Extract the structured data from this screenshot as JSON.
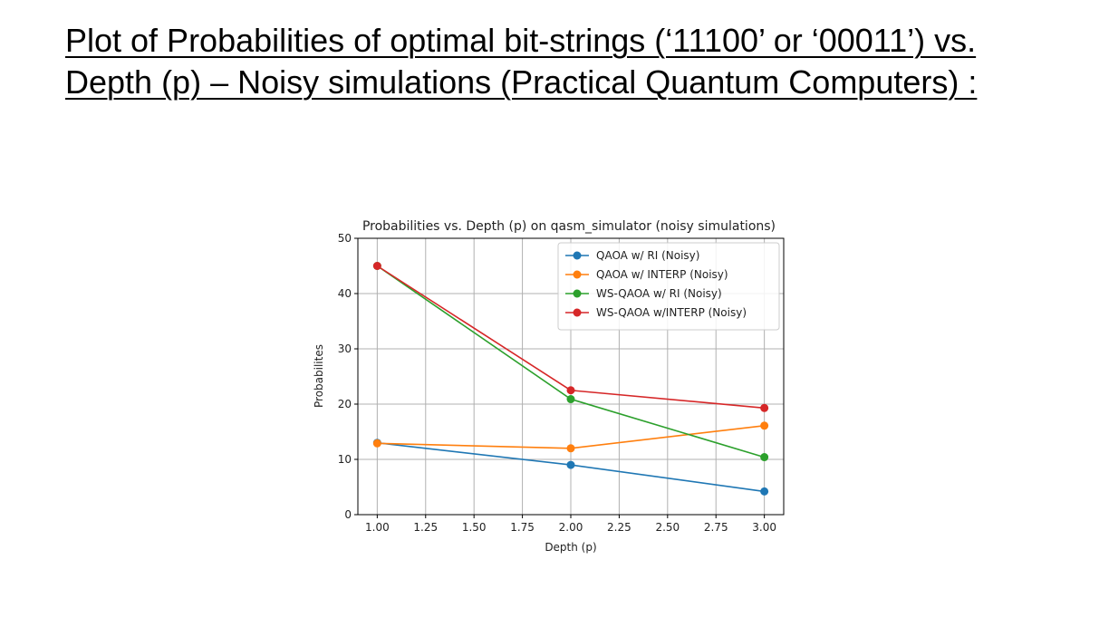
{
  "slide": {
    "title": "Plot of Probabilities of optimal bit-strings (‘11100’ or ‘00011’) vs. Depth (p) – Noisy simulations (Practical Quantum Computers) :"
  },
  "chart_data": {
    "type": "line",
    "title": "Probabilities vs. Depth (p) on qasm_simulator (noisy simulations)",
    "xlabel": "Depth (p)",
    "ylabel": "Probabilites",
    "xlim": [
      0.9,
      3.1
    ],
    "ylim": [
      0,
      50
    ],
    "xticks": [
      "1.00",
      "1.25",
      "1.50",
      "1.75",
      "2.00",
      "2.25",
      "2.50",
      "2.75",
      "3.00"
    ],
    "yticks": [
      "0",
      "10",
      "20",
      "30",
      "40",
      "50"
    ],
    "grid": true,
    "legend_position": "top-right",
    "x": [
      1,
      2,
      3
    ],
    "series": [
      {
        "name": "QAOA w/ RI (Noisy)",
        "color": "#1f77b4",
        "values": [
          13.0,
          9.0,
          4.2
        ]
      },
      {
        "name": "QAOA w/ INTERP (Noisy)",
        "color": "#ff7f0e",
        "values": [
          12.9,
          12.0,
          16.1
        ]
      },
      {
        "name": "WS-QAOA w/ RI (Noisy)",
        "color": "#2ca02c",
        "values": [
          45.0,
          20.9,
          10.4
        ]
      },
      {
        "name": "WS-QAOA w/INTERP (Noisy)",
        "color": "#d62728",
        "values": [
          45.0,
          22.5,
          19.3
        ]
      }
    ]
  }
}
